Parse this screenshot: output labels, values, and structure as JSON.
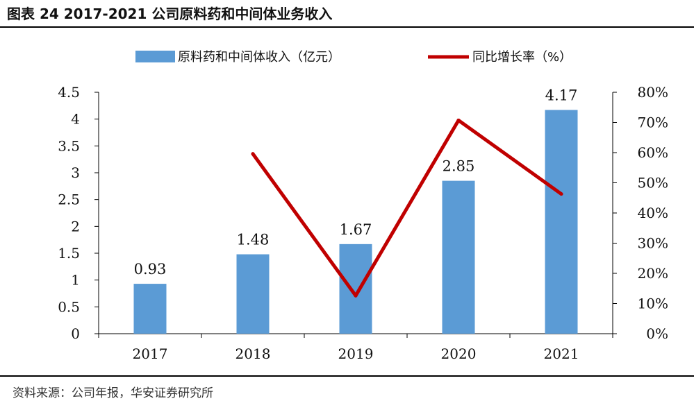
{
  "figure": {
    "title": "图表 24   2017-2021 公司原料药和中间体业务收入",
    "source": "资料来源：公司年报，华安证券研究所"
  },
  "colors": {
    "bar": "#5b9bd5",
    "line": "#c00000",
    "axis": "#000000"
  },
  "chart_data": {
    "type": "bar",
    "categories": [
      "2017",
      "2018",
      "2019",
      "2020",
      "2021"
    ],
    "series": [
      {
        "name": "原料药和中间体收入（亿元）",
        "type": "bar",
        "axis": "left",
        "values": [
          0.93,
          1.48,
          1.67,
          2.85,
          4.17
        ],
        "labels": [
          "0.93",
          "1.48",
          "1.67",
          "2.85",
          "4.17"
        ]
      },
      {
        "name": "同比增长率（%）",
        "type": "line",
        "axis": "right",
        "values": [
          null,
          59.6,
          12.6,
          70.7,
          46.3
        ]
      }
    ],
    "y_left": {
      "min": 0,
      "max": 4.5,
      "ticks": [
        "0",
        "0.5",
        "1",
        "1.5",
        "2",
        "2.5",
        "3",
        "3.5",
        "4",
        "4.5"
      ]
    },
    "y_right": {
      "min": 0,
      "max": 80,
      "ticks": [
        "0%",
        "10%",
        "20%",
        "30%",
        "40%",
        "50%",
        "60%",
        "70%",
        "80%"
      ]
    },
    "legend_position": "top",
    "grid": false
  }
}
